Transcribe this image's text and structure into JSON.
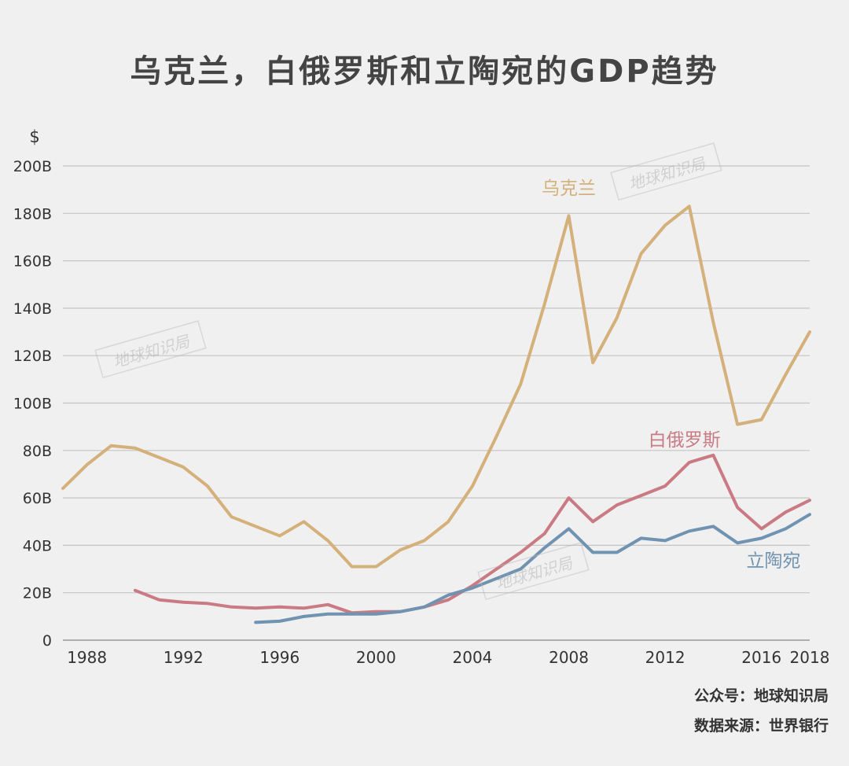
{
  "title": "乌克兰，白俄罗斯和立陶宛的GDP趋势",
  "footer": {
    "account": "公众号：地球知识局",
    "source": "数据来源：世界银行"
  },
  "watermark": "地球知识局",
  "chart_data": {
    "type": "line",
    "title": "乌克兰，白俄罗斯和立陶宛的GDP趋势",
    "ylabel": "$",
    "xlabel": "",
    "xlim": [
      1987,
      2018
    ],
    "ylim": [
      0,
      200
    ],
    "x_ticks": [
      1988,
      1992,
      1996,
      2000,
      2004,
      2008,
      2012,
      2016,
      2018
    ],
    "y_ticks": [
      {
        "value": 0,
        "label": "0"
      },
      {
        "value": 20,
        "label": "20B"
      },
      {
        "value": 40,
        "label": "40B"
      },
      {
        "value": 60,
        "label": "60B"
      },
      {
        "value": 80,
        "label": "80B"
      },
      {
        "value": 100,
        "label": "100B"
      },
      {
        "value": 120,
        "label": "120B"
      },
      {
        "value": 140,
        "label": "140B"
      },
      {
        "value": 160,
        "label": "160B"
      },
      {
        "value": 180,
        "label": "180B"
      },
      {
        "value": 200,
        "label": "200B"
      }
    ],
    "grid": true,
    "series": [
      {
        "name": "乌克兰",
        "color": "#d4b07a",
        "label_pos": [
          2008,
          188
        ],
        "x": [
          1987,
          1988,
          1989,
          1990,
          1991,
          1992,
          1993,
          1994,
          1995,
          1996,
          1997,
          1998,
          1999,
          2000,
          2001,
          2002,
          2003,
          2004,
          2005,
          2006,
          2007,
          2008,
          2009,
          2010,
          2011,
          2012,
          2013,
          2014,
          2015,
          2016,
          2017,
          2018
        ],
        "values": [
          64,
          74,
          82,
          81,
          77,
          73,
          65,
          52,
          48,
          44,
          50,
          42,
          31,
          31,
          38,
          42,
          50,
          65,
          86,
          108,
          142,
          179,
          117,
          136,
          163,
          175,
          183,
          134,
          91,
          93,
          112,
          130
        ]
      },
      {
        "name": "白俄罗斯",
        "color": "#c97a83",
        "label_pos": [
          2012.8,
          82
        ],
        "x": [
          1990,
          1991,
          1992,
          1993,
          1994,
          1995,
          1996,
          1997,
          1998,
          1999,
          2000,
          2001,
          2002,
          2003,
          2004,
          2005,
          2006,
          2007,
          2008,
          2009,
          2010,
          2011,
          2012,
          2013,
          2014,
          2015,
          2016,
          2017,
          2018
        ],
        "values": [
          21,
          17,
          16,
          15.5,
          14,
          13.5,
          14,
          13.5,
          15,
          11.5,
          12,
          12,
          14,
          17,
          23,
          30,
          37,
          45,
          60,
          50,
          57,
          61,
          65,
          75,
          78,
          56,
          47,
          54,
          59
        ]
      },
      {
        "name": "立陶宛",
        "color": "#6f93b0",
        "label_pos": [
          2016.5,
          31
        ],
        "x": [
          1995,
          1996,
          1997,
          1998,
          1999,
          2000,
          2001,
          2002,
          2003,
          2004,
          2005,
          2006,
          2007,
          2008,
          2009,
          2010,
          2011,
          2012,
          2013,
          2014,
          2015,
          2016,
          2017,
          2018
        ],
        "values": [
          7.5,
          8,
          10,
          11,
          11,
          11,
          12,
          14,
          19,
          22,
          26,
          30,
          39,
          47,
          37,
          37,
          43,
          42,
          46,
          48,
          41,
          43,
          47,
          53
        ]
      }
    ]
  }
}
